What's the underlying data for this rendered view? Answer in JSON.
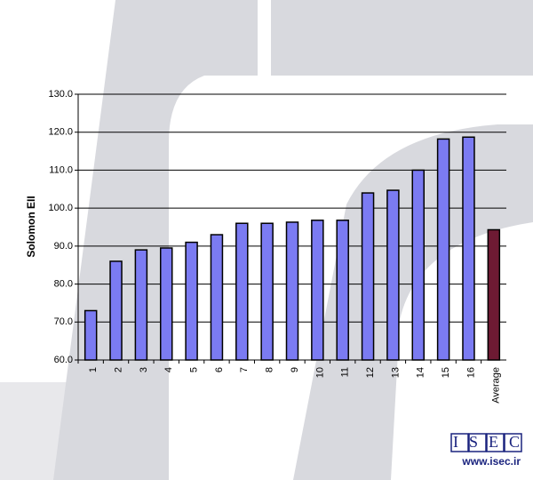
{
  "chart_data": {
    "type": "bar",
    "y_label": "Solomon EII",
    "categories": [
      "1",
      "2",
      "3",
      "4",
      "5",
      "6",
      "7",
      "8",
      "9",
      "10",
      "11",
      "12",
      "13",
      "14",
      "15",
      "16",
      "Average"
    ],
    "values": [
      73,
      86,
      89,
      89.5,
      91,
      93,
      96,
      96,
      96.3,
      96.8,
      96.8,
      104,
      104.7,
      110,
      118.2,
      118.7,
      94.3
    ],
    "colors": [
      "#7b7bf2",
      "#7b7bf2",
      "#7b7bf2",
      "#7b7bf2",
      "#7b7bf2",
      "#7b7bf2",
      "#7b7bf2",
      "#7b7bf2",
      "#7b7bf2",
      "#7b7bf2",
      "#7b7bf2",
      "#7b7bf2",
      "#7b7bf2",
      "#7b7bf2",
      "#7b7bf2",
      "#7b7bf2",
      "#6e1a33"
    ],
    "ylim": [
      60,
      130
    ],
    "yticks": [
      {
        "value": 60,
        "label": "60.0"
      },
      {
        "value": 70,
        "label": "70.0"
      },
      {
        "value": 80,
        "label": "80.0"
      },
      {
        "value": 90,
        "label": "90.0"
      },
      {
        "value": 100,
        "label": "100.0"
      },
      {
        "value": 110,
        "label": "110.0"
      },
      {
        "value": 120,
        "label": "120.0"
      },
      {
        "value": 130,
        "label": "130.0"
      }
    ],
    "grid": true
  },
  "logo": {
    "text": "ISEC",
    "url": "www.isec.ir"
  }
}
